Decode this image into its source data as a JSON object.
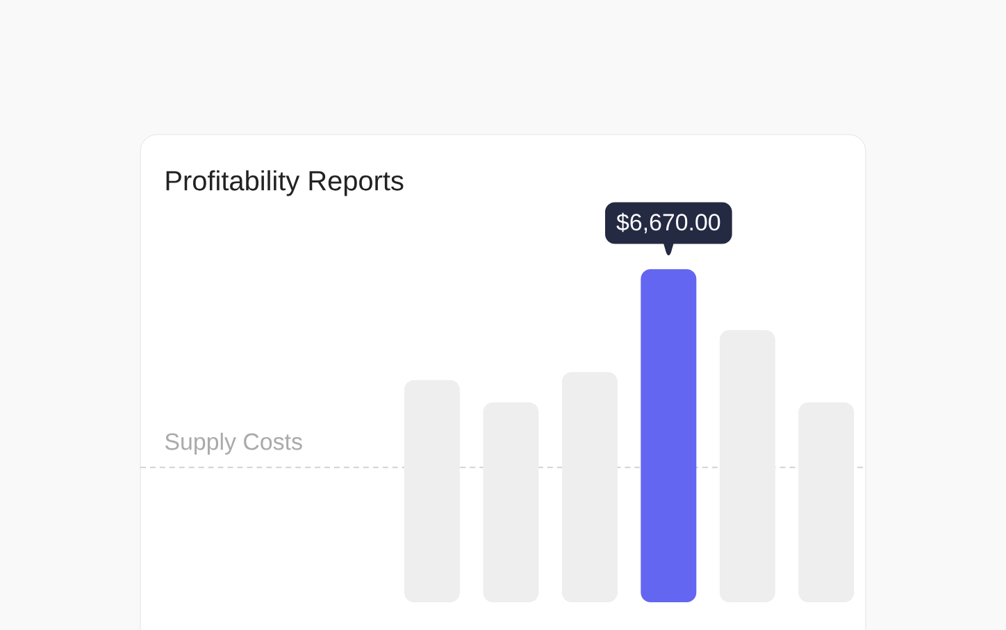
{
  "chart_data": {
    "type": "bar",
    "title": "Profitability Reports",
    "categories": [
      null,
      null,
      null,
      null,
      null,
      null
    ],
    "values": [
      4450,
      4000,
      4610,
      6670,
      5450,
      4000
    ],
    "ylim": [
      0,
      6670
    ],
    "colors": [
      "#eeeeee",
      "#eeeeee",
      "#eeeeee",
      "#6366f1",
      "#eeeeee",
      "#eeeeee"
    ],
    "value_labels": [
      null,
      null,
      null,
      "$6,670.00",
      null,
      null
    ],
    "ref_lines": [
      {
        "axis": "y",
        "value": 2700,
        "label": "Supply Costs",
        "color": "#cccccc",
        "line_style": "dashed"
      }
    ]
  }
}
